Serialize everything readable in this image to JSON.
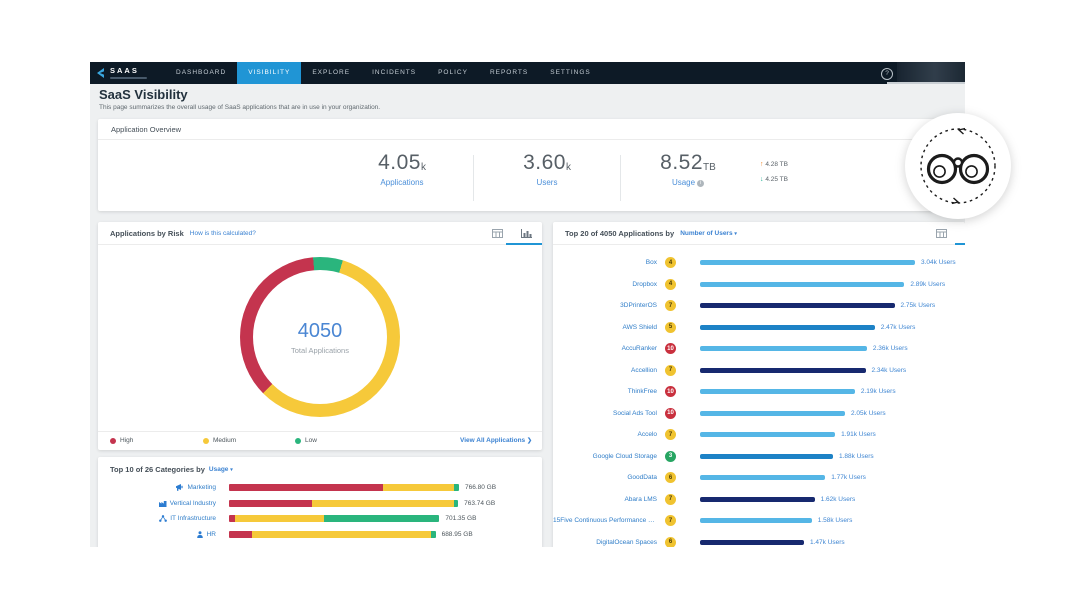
{
  "nav": {
    "logo_text": "SAAS",
    "tabs": [
      {
        "label": "DASHBOARD"
      },
      {
        "label": "VISIBILITY",
        "active": true
      },
      {
        "label": "EXPLORE"
      },
      {
        "label": "INCIDENTS"
      },
      {
        "label": "POLICY"
      },
      {
        "label": "REPORTS"
      },
      {
        "label": "SETTINGS"
      }
    ],
    "help_icon": "?"
  },
  "page": {
    "title": "SaaS Visibility",
    "subtitle": "This page summarizes the overall usage of SaaS applications that are in use in your organization."
  },
  "overview": {
    "title": "Application Overview",
    "stats": [
      {
        "value": "4.05",
        "unit": "k",
        "label": "Applications"
      },
      {
        "value": "3.60",
        "unit": "k",
        "label": "Users"
      },
      {
        "value": "8.52",
        "unit": "TB",
        "label": "Usage"
      }
    ],
    "transfer": {
      "upload_arrow": "↑",
      "upload": "4.28 TB",
      "download_arrow": "↓",
      "download": "4.25 TB"
    }
  },
  "risk_panel": {
    "title": "Applications by Risk",
    "link": "How is this calculated?",
    "donut_total": "4050",
    "donut_total_label": "Total Applications",
    "legend": [
      {
        "label": "High",
        "color": "#c4344e"
      },
      {
        "label": "Medium",
        "color": "#f6c93a"
      },
      {
        "label": "Low",
        "color": "#2ab57d"
      }
    ],
    "view_all": "View All Applications",
    "view_all_chevron": "❯"
  },
  "categories_panel": {
    "title_prefix": "Top 10 of 26 Categories by",
    "sort_label": "Usage",
    "sort_caret": "▾",
    "max_gb": 766.8,
    "rows": [
      {
        "name": "Marketing",
        "icon": "megaphone-icon",
        "gb": 766.8,
        "value_label": "766.80 GB",
        "segments": {
          "high": 0.67,
          "medium": 0.31,
          "low": 0.02
        }
      },
      {
        "name": "Vertical Industry",
        "icon": "industry-icon",
        "gb": 763.74,
        "value_label": "763.74 GB",
        "segments": {
          "high": 0.36,
          "medium": 0.62,
          "low": 0.02
        }
      },
      {
        "name": "IT Infrastructure",
        "icon": "network-icon",
        "gb": 701.35,
        "value_label": "701.35 GB",
        "segments": {
          "high": 0.03,
          "medium": 0.42,
          "low": 0.55
        }
      },
      {
        "name": "HR",
        "icon": "person-icon",
        "gb": 688.95,
        "value_label": "688.95 GB",
        "segments": {
          "high": 0.11,
          "medium": 0.87,
          "low": 0.02
        }
      }
    ]
  },
  "apps_panel": {
    "title_prefix": "Top 20 of 4050 Applications by",
    "sort_label": "Number of Users",
    "sort_caret": "▾",
    "max_users_k": 3.04,
    "rows": [
      {
        "name": "Box",
        "score": "4",
        "score_color": "yellow",
        "users_k": 3.04,
        "value_label": "3.04k Users",
        "bar_color": "light"
      },
      {
        "name": "Dropbox",
        "score": "4",
        "score_color": "yellow",
        "users_k": 2.89,
        "value_label": "2.89k Users",
        "bar_color": "light"
      },
      {
        "name": "3DPrinterOS",
        "score": "7",
        "score_color": "yellow",
        "users_k": 2.75,
        "value_label": "2.75k Users",
        "bar_color": "navy"
      },
      {
        "name": "AWS Shield",
        "score": "5",
        "score_color": "yellow",
        "users_k": 2.47,
        "value_label": "2.47k Users",
        "bar_color": "medium"
      },
      {
        "name": "AccuRanker",
        "score": "10",
        "score_color": "red",
        "users_k": 2.36,
        "value_label": "2.36k Users",
        "bar_color": "light"
      },
      {
        "name": "Accellion",
        "score": "7",
        "score_color": "yellow",
        "users_k": 2.34,
        "value_label": "2.34k Users",
        "bar_color": "navy"
      },
      {
        "name": "ThinkFree",
        "score": "10",
        "score_color": "red",
        "users_k": 2.19,
        "value_label": "2.19k Users",
        "bar_color": "light"
      },
      {
        "name": "Social Ads Tool",
        "score": "10",
        "score_color": "red",
        "users_k": 2.05,
        "value_label": "2.05k Users",
        "bar_color": "light"
      },
      {
        "name": "Accelo",
        "score": "7",
        "score_color": "yellow",
        "users_k": 1.91,
        "value_label": "1.91k Users",
        "bar_color": "light"
      },
      {
        "name": "Google Cloud Storage",
        "score": "3",
        "score_color": "green",
        "users_k": 1.88,
        "value_label": "1.88k Users",
        "bar_color": "medium"
      },
      {
        "name": "GoodData",
        "score": "6",
        "score_color": "yellow",
        "users_k": 1.77,
        "value_label": "1.77k Users",
        "bar_color": "light"
      },
      {
        "name": "Abara LMS",
        "score": "7",
        "score_color": "yellow",
        "users_k": 1.62,
        "value_label": "1.62k Users",
        "bar_color": "navy"
      },
      {
        "name": "15Five Continuous Performance M...",
        "score": "7",
        "score_color": "yellow",
        "users_k": 1.58,
        "value_label": "1.58k Users",
        "bar_color": "light"
      },
      {
        "name": "DigitalOcean Spaces",
        "score": "6",
        "score_color": "yellow",
        "users_k": 1.47,
        "value_label": "1.47k Users",
        "bar_color": "navy"
      }
    ]
  },
  "colors": {
    "accent_blue": "#2095d5",
    "link_blue": "#3c83d2",
    "bar": {
      "light": "#55b6e6",
      "medium": "#1d82c6",
      "navy": "#17296f"
    },
    "badge": {
      "yellow": "#f0c330",
      "red": "#c9303e",
      "green": "#27a562"
    },
    "risk": {
      "high": "#c4344e",
      "medium": "#f6c93a",
      "low": "#2ab57d"
    }
  },
  "chart_data": [
    {
      "type": "pie",
      "title": "Applications by Risk",
      "total": 4050,
      "center_label": "Total Applications",
      "segments": [
        {
          "label": "High",
          "percent": 36,
          "color": "#c4344e"
        },
        {
          "label": "Medium",
          "percent": 58,
          "color": "#f6c93a"
        },
        {
          "label": "Low",
          "percent": 6,
          "color": "#2ab57d"
        }
      ],
      "legend_position": "bottom"
    },
    {
      "type": "bar",
      "orientation": "horizontal",
      "title": "Top 20 of 4050 Applications by Number of Users",
      "categories": [
        "Box",
        "Dropbox",
        "3DPrinterOS",
        "AWS Shield",
        "AccuRanker",
        "Accellion",
        "ThinkFree",
        "Social Ads Tool",
        "Accelo",
        "Google Cloud Storage",
        "GoodData",
        "Abara LMS",
        "15Five Continuous Performance M...",
        "DigitalOcean Spaces"
      ],
      "values": [
        3040,
        2890,
        2750,
        2470,
        2360,
        2340,
        2190,
        2050,
        1910,
        1880,
        1770,
        1620,
        1580,
        1470
      ],
      "value_unit": "Users",
      "risk_scores": [
        4,
        4,
        7,
        5,
        10,
        7,
        10,
        10,
        7,
        3,
        6,
        7,
        7,
        6
      ],
      "xlim": [
        0,
        3200
      ]
    },
    {
      "type": "bar",
      "orientation": "horizontal",
      "stacked": true,
      "title": "Top 10 of 26 Categories by Usage",
      "categories": [
        "Marketing",
        "Vertical Industry",
        "IT Infrastructure",
        "HR"
      ],
      "values_gb": [
        766.8,
        763.74,
        701.35,
        688.95
      ],
      "series": [
        {
          "name": "High",
          "fractions": [
            0.67,
            0.36,
            0.03,
            0.11
          ]
        },
        {
          "name": "Medium",
          "fractions": [
            0.31,
            0.62,
            0.42,
            0.87
          ]
        },
        {
          "name": "Low",
          "fractions": [
            0.02,
            0.02,
            0.55,
            0.02
          ]
        }
      ],
      "value_unit": "GB"
    }
  ]
}
